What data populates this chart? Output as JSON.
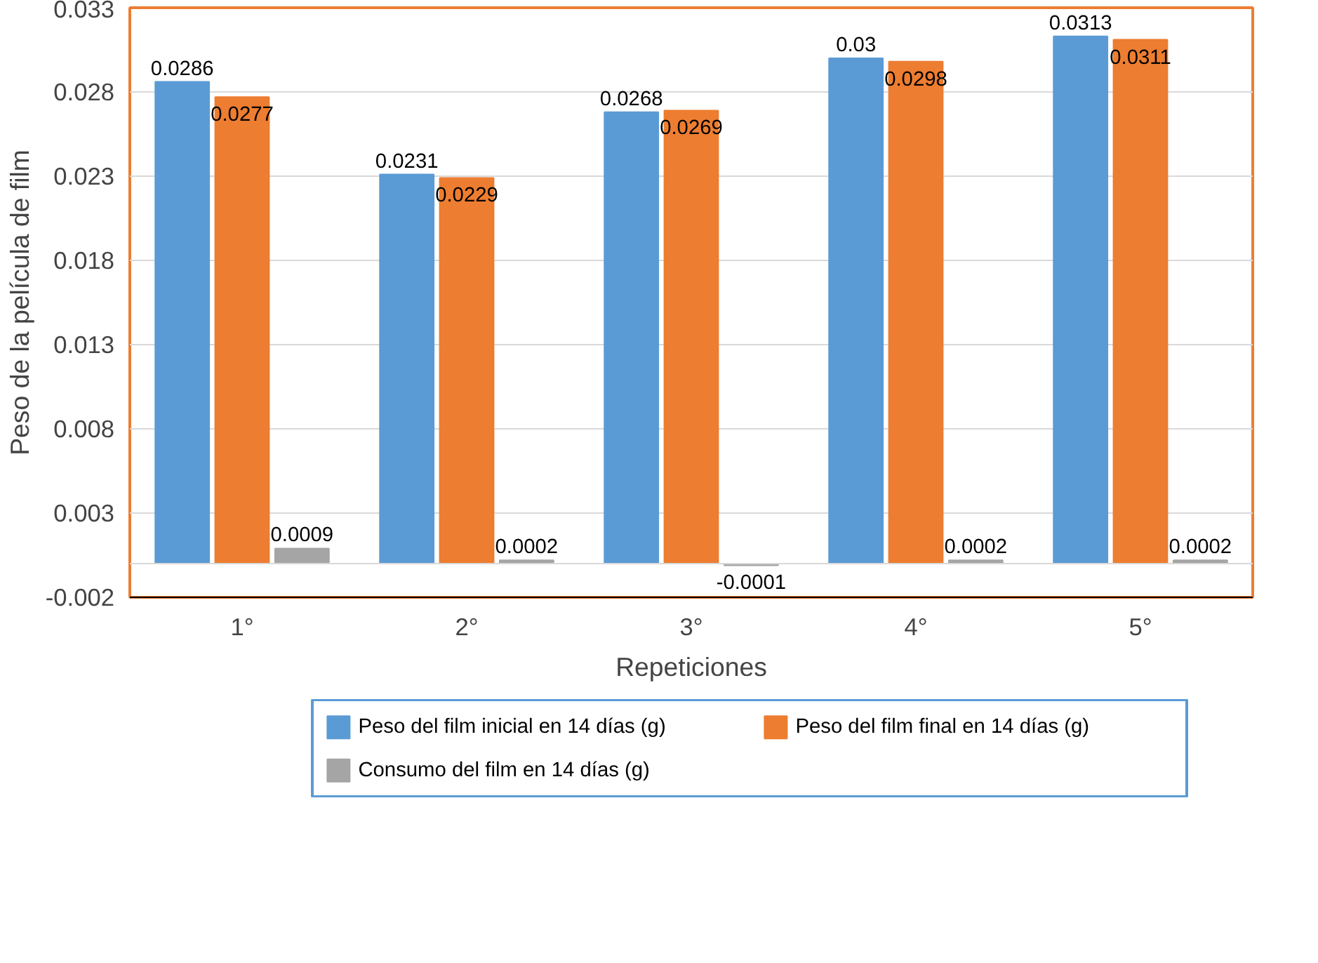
{
  "chart_data": {
    "type": "bar",
    "xlabel": "Repeticiones",
    "ylabel": "Peso de la película de film",
    "categories": [
      "1°",
      "2°",
      "3°",
      "4°",
      "5°"
    ],
    "series": [
      {
        "name": "Peso del film inicial en 14 días (g)",
        "color": "#5b9bd5",
        "values": [
          0.0286,
          0.0231,
          0.0268,
          0.03,
          0.0313
        ]
      },
      {
        "name": "Peso del film final en 14 días (g)",
        "color": "#ed7d31",
        "values": [
          0.0277,
          0.0229,
          0.0269,
          0.0298,
          0.0311
        ]
      },
      {
        "name": "Consumo del film en 14 días (g)",
        "color": "#a5a5a5",
        "values": [
          0.0009,
          0.0002,
          -0.0001,
          0.0002,
          0.0002
        ]
      }
    ],
    "ylim": [
      -0.002,
      0.033
    ],
    "yticks": [
      -0.002,
      0.003,
      0.008,
      0.013,
      0.018,
      0.023,
      0.028,
      0.033
    ],
    "grid": "y",
    "legend": "bottom",
    "data_labels": true
  }
}
